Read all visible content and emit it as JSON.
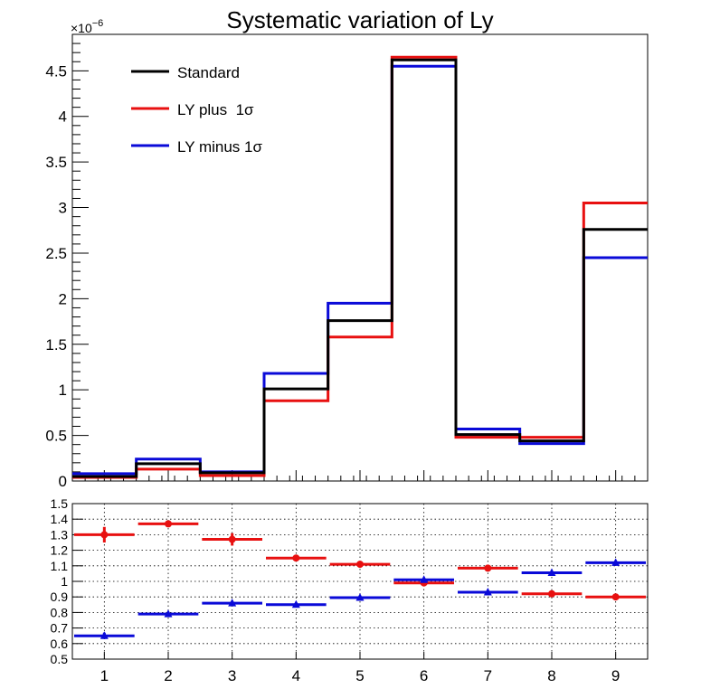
{
  "chart_data": [
    {
      "type": "line",
      "subtype": "step-histogram",
      "title": "Systematic variation of Ly",
      "y_exponent_label": "×10",
      "y_exponent_power": "−6",
      "categories": [
        "1",
        "2",
        "3",
        "4",
        "5",
        "6",
        "7",
        "8",
        "9"
      ],
      "xlim": [
        0.5,
        9.5
      ],
      "ylim": [
        0,
        4.9
      ],
      "yticks": [
        "0",
        "0.5",
        "1",
        "1.5",
        "2",
        "2.5",
        "3",
        "3.5",
        "4",
        "4.5"
      ],
      "series": [
        {
          "name": "Standard",
          "color": "#000000",
          "values": [
            0.05,
            0.19,
            0.09,
            1.01,
            1.76,
            4.62,
            0.51,
            0.44,
            2.76
          ]
        },
        {
          "name": "LY plus  1σ",
          "color": "#e81010",
          "values": [
            0.04,
            0.13,
            0.06,
            0.88,
            1.58,
            4.65,
            0.48,
            0.48,
            3.05
          ]
        },
        {
          "name": "LY minus 1σ",
          "color": "#0a0ad8",
          "values": [
            0.08,
            0.24,
            0.1,
            1.18,
            1.95,
            4.55,
            0.57,
            0.41,
            2.45
          ]
        }
      ],
      "legend": {
        "position": "top-left"
      }
    },
    {
      "type": "scatter",
      "subtype": "ratio",
      "categories": [
        "1",
        "2",
        "3",
        "4",
        "5",
        "6",
        "7",
        "8",
        "9"
      ],
      "xlim": [
        0.5,
        9.5
      ],
      "ylim": [
        0.5,
        1.5
      ],
      "xticks": [
        "1",
        "2",
        "3",
        "4",
        "5",
        "6",
        "7",
        "8",
        "9"
      ],
      "yticks": [
        "0.5",
        "0.6",
        "0.7",
        "0.8",
        "0.9",
        "1",
        "1.1",
        "1.2",
        "1.3",
        "1.4",
        "1.5"
      ],
      "grid": true,
      "series": [
        {
          "marker": "circle",
          "color": "#e81010",
          "values": [
            1.3,
            1.37,
            1.27,
            1.15,
            1.11,
            0.99,
            1.085,
            0.92,
            0.9
          ],
          "errors": [
            0.05,
            0.02,
            0.04,
            0.01,
            0.01,
            0.005,
            0.01,
            0.01,
            0.01
          ]
        },
        {
          "marker": "triangle",
          "color": "#0a0ad8",
          "values": [
            0.65,
            0.79,
            0.86,
            0.85,
            0.895,
            1.01,
            0.93,
            1.055,
            1.12
          ],
          "errors": [
            0.02,
            0.01,
            0.01,
            0.005,
            0.005,
            0.005,
            0.005,
            0.005,
            0.005
          ]
        }
      ]
    }
  ]
}
